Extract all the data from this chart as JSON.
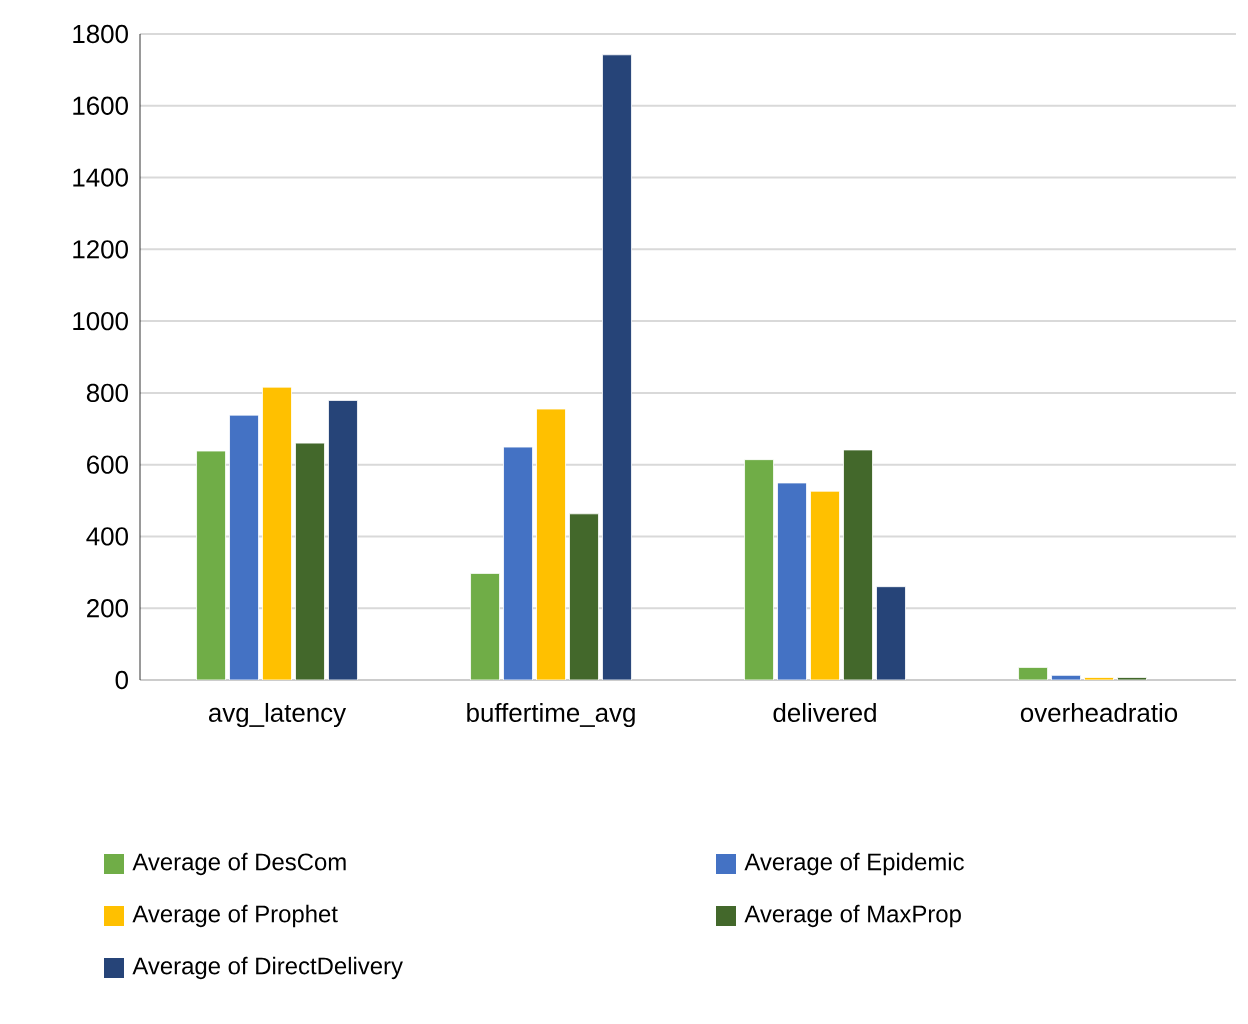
{
  "chart_data": {
    "type": "bar",
    "categories": [
      "avg_latency",
      "buffertime_avg",
      "delivered",
      "overheadratio"
    ],
    "series": [
      {
        "name": "Average of DesCom",
        "color": "#70ad47",
        "values": [
          638,
          297,
          614,
          35
        ]
      },
      {
        "name": "Average of Epidemic",
        "color": "#4472c4",
        "values": [
          738,
          649,
          549,
          13
        ]
      },
      {
        "name": "Average of Prophet",
        "color": "#ffc000",
        "values": [
          816,
          755,
          526,
          7
        ]
      },
      {
        "name": "Average of MaxProp",
        "color": "#43682b",
        "values": [
          660,
          463,
          641,
          7
        ]
      },
      {
        "name": "Average of DirectDelivery",
        "color": "#264478",
        "values": [
          779,
          1742,
          260,
          null
        ]
      }
    ],
    "ylim": [
      0,
      1800
    ],
    "yticks": [
      0,
      200,
      400,
      600,
      800,
      1000,
      1200,
      1400,
      1600,
      1800
    ],
    "grid": "y",
    "legend": "bottom"
  }
}
